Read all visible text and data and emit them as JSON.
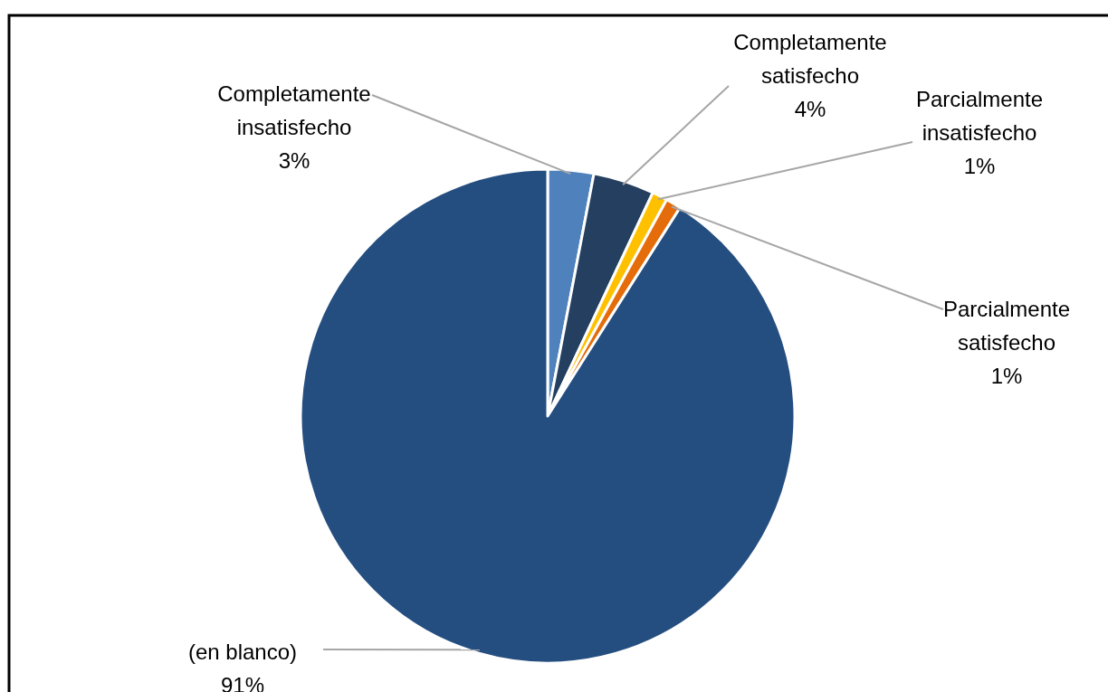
{
  "chart_data": {
    "type": "pie",
    "categories": [
      "Completamente insatisfecho",
      "Completamente satisfecho",
      "Parcialmente insatisfecho",
      "Parcialmente satisfecho",
      "(en blanco)"
    ],
    "values": [
      3,
      4,
      1,
      1,
      91
    ],
    "value_labels": [
      "3%",
      "4%",
      "1%",
      "1%",
      "91%"
    ],
    "colors": [
      "#4f81bd",
      "#243f60",
      "#ffc000",
      "#e46c0a",
      "#254e80"
    ]
  }
}
